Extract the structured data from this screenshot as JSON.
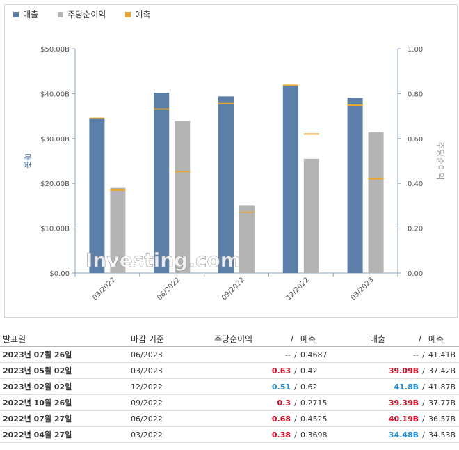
{
  "legend": [
    {
      "label": "매출",
      "color": "#5b7fa8"
    },
    {
      "label": "주당순이익",
      "color": "#b4b4b4"
    },
    {
      "label": "예측",
      "color": "#e8a630"
    }
  ],
  "chart_data": {
    "type": "bar",
    "categories": [
      "03/2022",
      "06/2022",
      "09/2022",
      "12/2022",
      "03/2023"
    ],
    "left_axis": {
      "label": "매출",
      "ticks": [
        "$0.00",
        "$10.00B",
        "$20.00B",
        "$30.00B",
        "$40.00B",
        "$50.00B"
      ],
      "range": [
        0,
        50
      ]
    },
    "right_axis": {
      "label": "주당순이익",
      "ticks": [
        "0.00",
        "0.20",
        "0.40",
        "0.60",
        "0.80",
        "1.00"
      ],
      "range": [
        0,
        1
      ]
    },
    "series": [
      {
        "name": "매출",
        "axis": "left",
        "color": "#5b7fa8",
        "values": [
          34.48,
          40.19,
          39.39,
          41.8,
          39.09
        ],
        "forecast": [
          34.53,
          36.57,
          37.77,
          41.87,
          37.42
        ]
      },
      {
        "name": "주당순이익",
        "axis": "right",
        "color": "#b4b4b4",
        "values": [
          0.38,
          0.68,
          0.3,
          0.51,
          0.63
        ],
        "forecast": [
          0.3698,
          0.4525,
          0.2715,
          0.62,
          0.42
        ]
      }
    ],
    "forecast_color": "#e8a630",
    "watermark": "Investing.com"
  },
  "table": {
    "headers": {
      "date": "발표일",
      "period": "마감 기준",
      "eps": "주당순이익",
      "slash": "/",
      "eps_forecast": "예측",
      "revenue": "매출",
      "revenue_forecast": "예측"
    },
    "rows": [
      {
        "date": "2023년 07월 26일",
        "period": "06/2023",
        "eps": "--",
        "eps_cls": "neu",
        "eps_forecast": "0.4687",
        "revenue": "--",
        "rev_cls": "neu",
        "revenue_forecast": "41.41B"
      },
      {
        "date": "2023년 05월 02일",
        "period": "03/2023",
        "eps": "0.63",
        "eps_cls": "pos",
        "eps_forecast": "0.42",
        "revenue": "39.09B",
        "rev_cls": "pos",
        "revenue_forecast": "37.42B"
      },
      {
        "date": "2023년 02월 02일",
        "period": "12/2022",
        "eps": "0.51",
        "eps_cls": "neg",
        "eps_forecast": "0.62",
        "revenue": "41.8B",
        "rev_cls": "neg",
        "revenue_forecast": "41.87B"
      },
      {
        "date": "2022년 10월 26일",
        "period": "09/2022",
        "eps": "0.3",
        "eps_cls": "pos",
        "eps_forecast": "0.2715",
        "revenue": "39.39B",
        "rev_cls": "pos",
        "revenue_forecast": "37.77B"
      },
      {
        "date": "2022년 07월 27일",
        "period": "06/2022",
        "eps": "0.68",
        "eps_cls": "pos",
        "eps_forecast": "0.4525",
        "revenue": "40.19B",
        "rev_cls": "pos",
        "revenue_forecast": "36.57B"
      },
      {
        "date": "2022년 04월 27일",
        "period": "03/2022",
        "eps": "0.38",
        "eps_cls": "pos",
        "eps_forecast": "0.3698",
        "revenue": "34.48B",
        "rev_cls": "neg",
        "revenue_forecast": "34.53B"
      }
    ]
  }
}
